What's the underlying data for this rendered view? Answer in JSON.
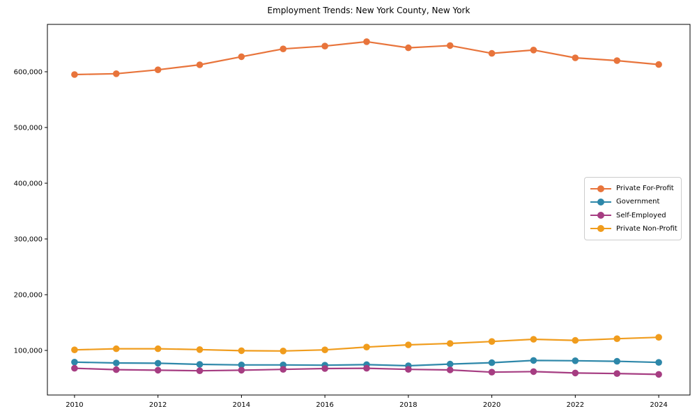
{
  "chart_data": {
    "type": "line",
    "title": "Employment Trends: New York County, New York",
    "xlabel": "",
    "ylabel": "",
    "grid": false,
    "legend_position": "center-right",
    "x": [
      2010,
      2011,
      2012,
      2013,
      2014,
      2015,
      2016,
      2017,
      2018,
      2019,
      2020,
      2021,
      2022,
      2023,
      2024
    ],
    "xticks": [
      2010,
      2012,
      2014,
      2016,
      2018,
      2020,
      2022,
      2024
    ],
    "xtick_labels": [
      "2010",
      "2012",
      "2014",
      "2016",
      "2018",
      "2020",
      "2022",
      "2024"
    ],
    "yticks": [
      100000,
      200000,
      300000,
      400000,
      500000,
      600000
    ],
    "ytick_labels": [
      "100,000",
      "200,000",
      "300,000",
      "400,000",
      "500,000",
      "600,000"
    ],
    "xlim": [
      2009.35,
      2024.75
    ],
    "ylim": [
      20000,
      685000
    ],
    "series": [
      {
        "name": "Private For-Profit",
        "color": "#e8743b",
        "values": [
          595000,
          596500,
          603500,
          612500,
          627000,
          641000,
          646000,
          654000,
          643000,
          647000,
          633000,
          639000,
          625000,
          620000,
          613000
        ]
      },
      {
        "name": "Government",
        "color": "#2d87a9",
        "values": [
          79000,
          77500,
          77000,
          75000,
          74000,
          74000,
          73500,
          74500,
          72500,
          75500,
          78000,
          82000,
          81500,
          80500,
          78500
        ]
      },
      {
        "name": "Self-Employed",
        "color": "#a63d82",
        "values": [
          68000,
          65500,
          64500,
          63500,
          64500,
          66000,
          67500,
          68000,
          66000,
          65000,
          61000,
          62000,
          59500,
          58500,
          57000
        ]
      },
      {
        "name": "Private Non-Profit",
        "color": "#f09c1d",
        "values": [
          101000,
          103000,
          103000,
          101500,
          99500,
          99000,
          101000,
          106000,
          110000,
          112500,
          116000,
          120000,
          118000,
          121000,
          123500
        ]
      }
    ]
  }
}
